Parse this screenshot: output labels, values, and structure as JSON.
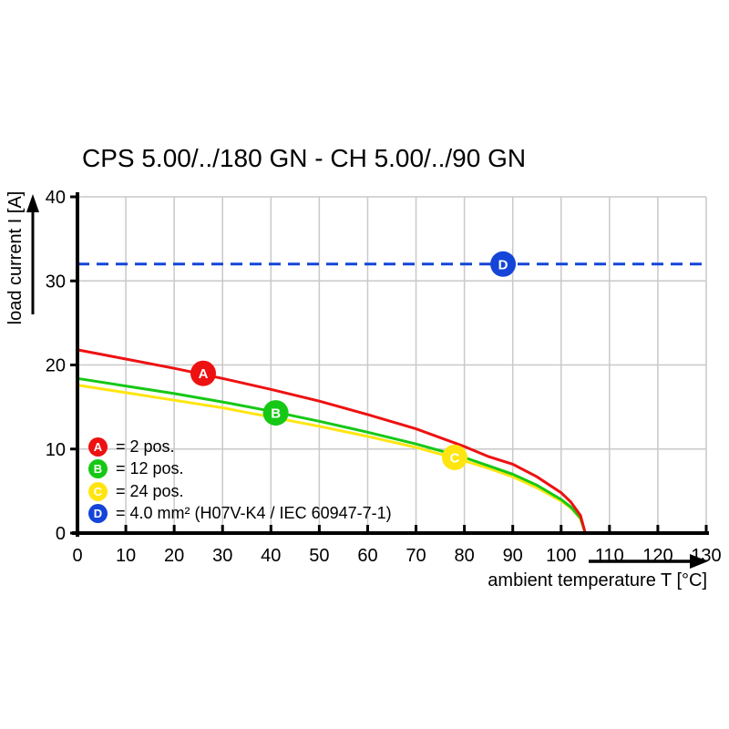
{
  "title": "CPS 5.00/../180 GN - CH 5.00/../90 GN",
  "colors": {
    "grid": "#c9c9c9",
    "axis": "#000000",
    "text": "#000000",
    "background": "#ffffff"
  },
  "chart_data": {
    "type": "line",
    "title": "CPS 5.00/../180 GN - CH 5.00/../90 GN",
    "xlabel": "ambient temperature T [°C]",
    "ylabel": "load current I [A]",
    "xlim": [
      0,
      130
    ],
    "ylim": [
      0,
      40
    ],
    "xticks": [
      0,
      10,
      20,
      30,
      40,
      50,
      60,
      70,
      80,
      90,
      100,
      110,
      120,
      130
    ],
    "yticks": [
      0,
      10,
      20,
      30,
      40
    ],
    "grid": true,
    "legend_position": "inside-bottom-left",
    "series": [
      {
        "id": "A",
        "legend_label": "= 2 pos.",
        "color": "#ee1111",
        "style": "solid",
        "marker": {
          "t": 26,
          "i": 19
        },
        "points": [
          [
            0,
            21.8
          ],
          [
            10,
            20.7
          ],
          [
            20,
            19.6
          ],
          [
            30,
            18.4
          ],
          [
            40,
            17.1
          ],
          [
            50,
            15.7
          ],
          [
            60,
            14.1
          ],
          [
            70,
            12.4
          ],
          [
            80,
            10.3
          ],
          [
            85,
            9.1
          ],
          [
            90,
            8.2
          ],
          [
            95,
            6.7
          ],
          [
            100,
            4.8
          ],
          [
            102,
            3.7
          ],
          [
            104,
            2.1
          ],
          [
            105,
            0
          ]
        ]
      },
      {
        "id": "B",
        "legend_label": "= 12 pos.",
        "color": "#16c816",
        "style": "solid",
        "marker": {
          "t": 41,
          "i": 14.3
        },
        "points": [
          [
            0,
            18.4
          ],
          [
            10,
            17.5
          ],
          [
            20,
            16.6
          ],
          [
            30,
            15.6
          ],
          [
            40,
            14.5
          ],
          [
            50,
            13.3
          ],
          [
            60,
            12.0
          ],
          [
            70,
            10.6
          ],
          [
            80,
            9.0
          ],
          [
            85,
            8.0
          ],
          [
            90,
            7.0
          ],
          [
            95,
            5.7
          ],
          [
            100,
            4.0
          ],
          [
            102,
            3.1
          ],
          [
            104,
            1.8
          ],
          [
            105,
            0
          ]
        ]
      },
      {
        "id": "C",
        "legend_label": "= 24 pos.",
        "color": "#ffe510",
        "style": "solid",
        "marker": {
          "t": 78,
          "i": 9
        },
        "points": [
          [
            0,
            17.6
          ],
          [
            10,
            16.7
          ],
          [
            20,
            15.8
          ],
          [
            30,
            14.9
          ],
          [
            40,
            13.8
          ],
          [
            50,
            12.7
          ],
          [
            60,
            11.5
          ],
          [
            70,
            10.2
          ],
          [
            80,
            8.6
          ],
          [
            85,
            7.7
          ],
          [
            90,
            6.7
          ],
          [
            95,
            5.4
          ],
          [
            100,
            3.8
          ],
          [
            102,
            3.0
          ],
          [
            104,
            1.7
          ],
          [
            105,
            0
          ]
        ]
      },
      {
        "id": "D",
        "legend_label": "= 4.0 mm² (H07V-K4 / IEC 60947-7-1)",
        "color": "#1445d8",
        "style": "dashed",
        "marker": {
          "t": 88,
          "i": 32
        },
        "points": [
          [
            0,
            32
          ],
          [
            130,
            32
          ]
        ]
      }
    ]
  }
}
